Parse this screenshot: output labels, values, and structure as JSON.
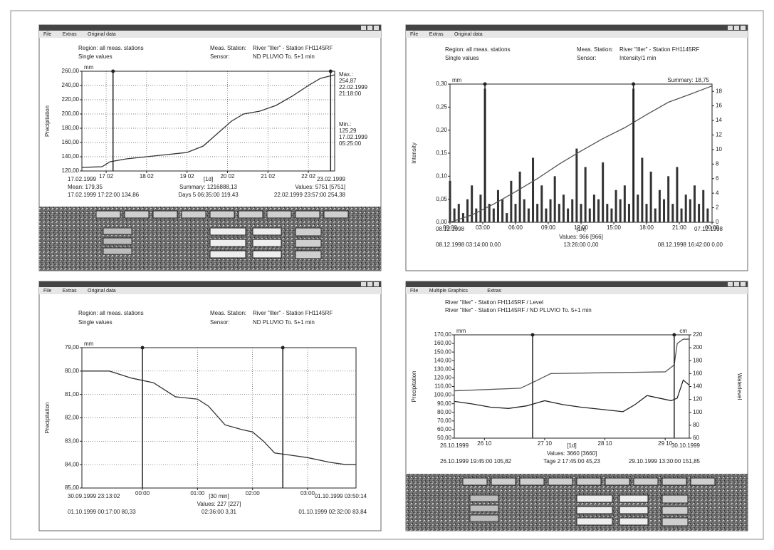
{
  "chart_data": [
    {
      "type": "line",
      "menu": [
        "File",
        "Extras",
        "Original data"
      ],
      "header": [
        [
          "Region: all meas. stations",
          "Meas. Station:",
          "River \"Iller\" - Station FH1145RF"
        ],
        [
          "Single values",
          "Sensor:",
          "ND PLUVIO To. 5+1 min"
        ]
      ],
      "y_label": "Precipitation",
      "y_unit": "mm",
      "grid": true,
      "ylim": [
        120,
        260
      ],
      "yticks": [
        {
          "value": 120,
          "label": "120,00"
        },
        {
          "value": 140,
          "label": "140,00"
        },
        {
          "value": 160,
          "label": "160,00"
        },
        {
          "value": 180,
          "label": "180,00"
        },
        {
          "value": 200,
          "label": "200,00"
        },
        {
          "value": 220,
          "label": "220,00"
        },
        {
          "value": 240,
          "label": "240,00"
        },
        {
          "value": 260,
          "label": "260,00"
        }
      ],
      "xlim": [
        16.4,
        22.65
      ],
      "xticks": [
        {
          "value": 17,
          "label": "17 02"
        },
        {
          "value": 18,
          "label": "18 02"
        },
        {
          "value": 19,
          "label": "19 02"
        },
        {
          "value": 20,
          "label": "20 02"
        },
        {
          "value": 21,
          "label": "21 02"
        },
        {
          "value": 22,
          "label": "22 02"
        }
      ],
      "series": [
        {
          "color": "#333333",
          "x": [
            16.4,
            16.9,
            17.1,
            17.5,
            18.0,
            18.5,
            19.0,
            19.4,
            19.8,
            20.1,
            20.4,
            20.8,
            21.2,
            21.6,
            22.0,
            22.3,
            22.65
          ],
          "values": [
            125,
            126,
            133,
            137,
            140,
            143,
            146,
            155,
            175,
            190,
            200,
            204,
            212,
            225,
            240,
            250,
            255
          ]
        }
      ],
      "cursors": [
        17.17,
        22.55
      ],
      "notes": [
        "Max.:",
        "254,87",
        "22.02.1999",
        "21:18:00",
        "Min.:",
        "125,29",
        "17.02.1999",
        "05:25:00"
      ],
      "footer": [
        [
          "17.02.1999",
          "[1d]",
          "23.02.1999"
        ],
        [
          "Mean: 179,35",
          "Summary: 1216888,13",
          "Values: 5751 [5751]"
        ],
        [
          "17.02.1999 17:22:00 134,86",
          "Days 5 06:35:00 119,43",
          "22.02.1999 23:57:00 254,38"
        ]
      ]
    },
    {
      "type": "bar",
      "menu": [
        "File",
        "Extras",
        "Original data"
      ],
      "header": [
        [
          "Region: all meas. stations",
          "Meas. Station:",
          "River \"Iller\" - Station FH1145RF"
        ],
        [
          "Single values",
          "Sensor:",
          "Intensity/1 min"
        ]
      ],
      "y_label": "Intensity",
      "y_unit": "mm",
      "grid": false,
      "annotation": "Summary: 18,75",
      "ylim": [
        0,
        0.3
      ],
      "yticks": [
        {
          "value": 0,
          "label": "0,00"
        },
        {
          "value": 0.05,
          "label": "0,05"
        },
        {
          "value": 0.1,
          "label": "0,10"
        },
        {
          "value": 0.15,
          "label": "0,15"
        },
        {
          "value": 0.2,
          "label": "0,20"
        },
        {
          "value": 0.25,
          "label": "0,25"
        },
        {
          "value": 0.3,
          "label": "0,30"
        }
      ],
      "y2lim": [
        0,
        19
      ],
      "y2ticks": [
        0,
        2,
        4,
        6,
        8,
        10,
        12,
        14,
        16,
        18
      ],
      "xlim": [
        0,
        24
      ],
      "xticks": [
        {
          "value": 0,
          "label": "00:00"
        },
        {
          "value": 3,
          "label": "03:00"
        },
        {
          "value": 6,
          "label": "06:00"
        },
        {
          "value": 9,
          "label": "09:00"
        },
        {
          "value": 12,
          "label": "12:00"
        },
        {
          "value": 15,
          "label": "15:00"
        },
        {
          "value": 18,
          "label": "18:00"
        },
        {
          "value": 21,
          "label": "21:00"
        },
        {
          "value": 24,
          "label": "00:00"
        }
      ],
      "series": [
        {
          "type": "bar",
          "color": "#333333",
          "x": [
            0,
            0.4,
            0.8,
            1.2,
            1.6,
            2,
            2.4,
            2.8,
            3.2,
            3.6,
            4,
            4.4,
            4.8,
            5.2,
            5.6,
            6,
            6.4,
            6.8,
            7.2,
            7.6,
            8,
            8.4,
            8.8,
            9.2,
            9.6,
            10,
            10.4,
            10.8,
            11.2,
            11.6,
            12,
            12.4,
            12.8,
            13.2,
            13.6,
            14,
            14.4,
            14.8,
            15.2,
            15.6,
            16,
            16.4,
            16.8,
            17.2,
            17.6,
            18,
            18.4,
            18.8,
            19.2,
            19.6,
            20,
            20.4,
            20.8,
            21.2,
            21.6,
            22,
            22.4,
            22.8,
            23.2,
            23.6
          ],
          "values": [
            0.09,
            0.03,
            0.04,
            0.02,
            0.05,
            0.08,
            0.03,
            0.06,
            0.29,
            0.04,
            0.03,
            0.07,
            0.05,
            0.02,
            0.09,
            0.04,
            0.11,
            0.05,
            0.03,
            0.14,
            0.04,
            0.08,
            0.03,
            0.05,
            0.1,
            0.04,
            0.06,
            0.03,
            0.05,
            0.16,
            0.04,
            0.12,
            0.03,
            0.06,
            0.05,
            0.13,
            0.04,
            0.03,
            0.07,
            0.05,
            0.08,
            0.04,
            0.29,
            0.06,
            0.14,
            0.04,
            0.11,
            0.03,
            0.07,
            0.05,
            0.1,
            0.04,
            0.12,
            0.03,
            0.06,
            0.05,
            0.08,
            0.04,
            0.07,
            0.03
          ]
        },
        {
          "type": "line",
          "axis": "y2",
          "color": "#555555",
          "x": [
            0,
            2,
            4,
            6,
            8,
            10,
            12,
            14,
            16,
            18,
            20,
            22,
            24
          ],
          "values": [
            0,
            1.0,
            2.5,
            4.2,
            6.0,
            8.0,
            9.8,
            11.5,
            13.0,
            14.8,
            16.5,
            17.6,
            18.75
          ]
        }
      ],
      "cursors": [
        3.2,
        16.8
      ],
      "footer": [
        [
          "08.12.1998",
          "[1h]",
          "07.12.1998"
        ],
        [
          "Values: 966 [966]"
        ],
        [
          "08.12.1998 03:14:00 0,00",
          "13:26:00 0,00",
          "08.12.1998 16:42:00 0,00"
        ]
      ]
    },
    {
      "type": "line",
      "menu": [
        "File",
        "Extras",
        "Original data"
      ],
      "header": [
        [
          "Region: all meas. stations",
          "Meas. Station:",
          "River \"Iller\" - Station FH1145RF"
        ],
        [
          "Single values",
          "Sensor:",
          "ND PLUVIO To. 5+1 min"
        ]
      ],
      "y_label": "Precipitation",
      "y_unit": "mm",
      "grid": true,
      "ylim": [
        85,
        79
      ],
      "yticks": [
        {
          "value": 79,
          "label": "79,00"
        },
        {
          "value": 80,
          "label": "80,00"
        },
        {
          "value": 81,
          "label": "81,00"
        },
        {
          "value": 82,
          "label": "82,00"
        },
        {
          "value": 83,
          "label": "83,00"
        },
        {
          "value": 84,
          "label": "84,00"
        },
        {
          "value": 85,
          "label": "85,00"
        }
      ],
      "xlim": [
        -1.1,
        3.88
      ],
      "xticks": [
        {
          "value": 0,
          "label": "00:00"
        },
        {
          "value": 1,
          "label": "01:00"
        },
        {
          "value": 2,
          "label": "02:00"
        },
        {
          "value": 3,
          "label": "03:00"
        }
      ],
      "series": [
        {
          "color": "#333333",
          "x": [
            -1.1,
            -0.6,
            -0.2,
            0.2,
            0.4,
            0.6,
            1.0,
            1.2,
            1.5,
            1.8,
            2.0,
            2.2,
            2.4,
            2.7,
            3.0,
            3.4,
            3.7,
            3.88
          ],
          "values": [
            80.0,
            80.0,
            80.3,
            80.5,
            80.8,
            81.1,
            81.2,
            81.5,
            82.3,
            82.5,
            82.6,
            83.0,
            83.5,
            83.6,
            83.7,
            83.9,
            84.0,
            84.0
          ]
        }
      ],
      "cursors": [
        0.0,
        2.55
      ],
      "footer": [
        [
          "30.09.1999 23:13:02",
          "[30 min]",
          "01.10.1999 03:50:14"
        ],
        [
          "Values: 227 [227]"
        ],
        [
          "01.10.1999 00:17:00 80,33",
          "02:36:00 3,31",
          "01.10.1999 02:32:00 83,84"
        ]
      ]
    },
    {
      "type": "line",
      "menu": [
        "File",
        "Multiple Graphics",
        "Extras"
      ],
      "header": [
        [
          "River \"Iller\" - Station FH1145RF / Level"
        ],
        [
          "River \"Iller\" - Station FH1145RF / ND PLUVIO To. 5+1 min"
        ]
      ],
      "y_label": "Precipitation",
      "y_unit": "mm",
      "y2_label": "Waterlevel",
      "y2_unit": "cm",
      "grid": false,
      "ylim": [
        50,
        170
      ],
      "yticks": [
        {
          "value": 50,
          "label": "50,00"
        },
        {
          "value": 60,
          "label": "60,00"
        },
        {
          "value": 70,
          "label": "70,00"
        },
        {
          "value": 80,
          "label": "80,00"
        },
        {
          "value": 90,
          "label": "90,00"
        },
        {
          "value": 100,
          "label": "100,00"
        },
        {
          "value": 110,
          "label": "110,00"
        },
        {
          "value": 120,
          "label": "120,00"
        },
        {
          "value": 130,
          "label": "130,00"
        },
        {
          "value": 140,
          "label": "140,00"
        },
        {
          "value": 150,
          "label": "150,00"
        },
        {
          "value": 160,
          "label": "160,00"
        },
        {
          "value": 170,
          "label": "170,00"
        }
      ],
      "y2lim": [
        60,
        220
      ],
      "y2ticks": [
        60,
        80,
        100,
        120,
        140,
        160,
        180,
        200,
        220
      ],
      "xlim": [
        25.5,
        29.4
      ],
      "xticks": [
        {
          "value": 26,
          "label": "26 10"
        },
        {
          "value": 27,
          "label": "27 10"
        },
        {
          "value": 28,
          "label": "28 10"
        },
        {
          "value": 29,
          "label": "29 10"
        }
      ],
      "series": [
        {
          "color": "#555555",
          "x": [
            25.5,
            26.6,
            26.9,
            27.1,
            28.0,
            29.0,
            29.15,
            29.2,
            29.3,
            29.4
          ],
          "values": [
            105,
            108,
            118,
            125,
            126,
            127,
            135,
            160,
            165,
            165
          ]
        },
        {
          "color": "#222222",
          "axis": "y2",
          "x": [
            25.5,
            25.8,
            26.1,
            26.4,
            26.7,
            27.0,
            27.3,
            27.6,
            28.0,
            28.3,
            28.5,
            28.7,
            28.9,
            29.1,
            29.2,
            29.3,
            29.4
          ],
          "values": [
            117,
            113,
            108,
            106,
            110,
            118,
            112,
            108,
            104,
            101,
            112,
            126,
            122,
            118,
            122,
            150,
            142
          ]
        }
      ],
      "cursors": [
        26.8,
        29.15
      ],
      "footer": [
        [
          "26.10.1999",
          "[1d]",
          "30.10.1999"
        ],
        [
          "Values: 3660 [3660]"
        ],
        [
          "26.10.1999 19:45:00 105,82",
          "Tage 2 17:45:00 45,23",
          "29.10.1999 13:30:00 151,85"
        ]
      ]
    }
  ]
}
